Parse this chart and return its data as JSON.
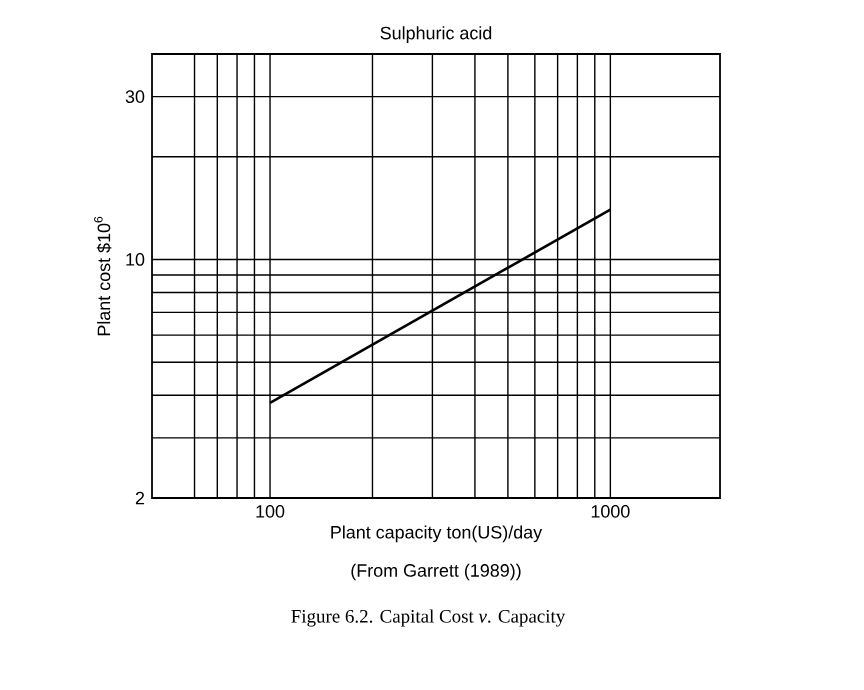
{
  "chart_data": {
    "type": "line",
    "title": "Sulphuric acid",
    "xlabel": "Plant capacity ton(US)/day",
    "ylabel": "Plant cost $10$^{6}$",
    "annotations": [
      "(From Garrett (1989))",
      "Figure 6.2.   Capital Cost *v*. Capacity"
    ],
    "x": [
      100,
      1000
    ],
    "series": [
      {
        "color": "#000000",
        "values": [
          3.8,
          14
        ]
      }
    ],
    "log": "xy",
    "grid": true,
    "marker": "none",
    "line_style": "solid",
    "xlim": [
      45,
      2100
    ],
    "ylim": [
      2,
      40
    ],
    "xticks": [
      {
        "value": 60,
        "label": null
      },
      {
        "value": 70,
        "label": null
      },
      {
        "value": 80,
        "label": null
      },
      {
        "value": 90,
        "label": null
      },
      100,
      {
        "value": 200,
        "label": null
      },
      {
        "value": 300,
        "label": null
      },
      {
        "value": 400,
        "label": null
      },
      {
        "value": 500,
        "label": null
      },
      {
        "value": 600,
        "label": null
      },
      {
        "value": 700,
        "label": null
      },
      {
        "value": 800,
        "label": null
      },
      {
        "value": 900,
        "label": null
      },
      1000
    ],
    "yticks": [
      2,
      {
        "value": 3,
        "label": null
      },
      {
        "value": 4,
        "label": null
      },
      {
        "value": 5,
        "label": null
      },
      {
        "value": 6,
        "label": null
      },
      {
        "value": 7,
        "label": null
      },
      {
        "value": 8,
        "label": null
      },
      {
        "value": 9,
        "label": null
      },
      10,
      {
        "value": 20,
        "label": null
      },
      30
    ]
  }
}
